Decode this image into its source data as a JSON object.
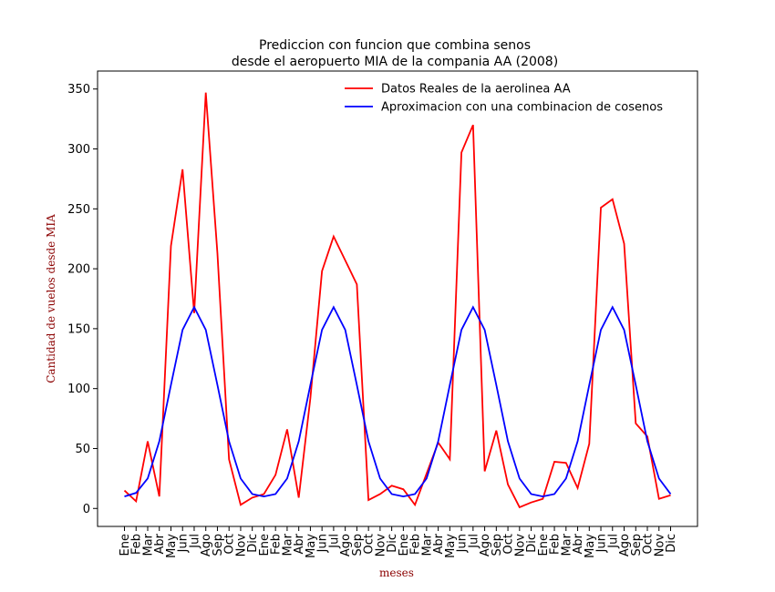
{
  "chart_data": {
    "type": "line",
    "title_line1": "Prediccion con funcion que combina senos",
    "title_line2": "desde el aeropuerto MIA de la compania AA (2008)",
    "xlabel": "meses",
    "ylabel": "Cantidad de vuelos desde MIA",
    "ylim": [
      -15,
      365
    ],
    "yticks": [
      0,
      50,
      100,
      150,
      200,
      250,
      300,
      350
    ],
    "legend_position": "top-right",
    "categories": [
      "Ene",
      "Feb",
      "Mar",
      "Abr",
      "May",
      "Jun",
      "Jul",
      "Ago",
      "Sep",
      "Oct",
      "Nov",
      "Dic",
      "Ene",
      "Feb",
      "Mar",
      "Abr",
      "May",
      "Jun",
      "Jul",
      "Ago",
      "Sep",
      "Oct",
      "Nov",
      "Dic",
      "Ene",
      "Feb",
      "Mar",
      "Abr",
      "May",
      "Jun",
      "Jul",
      "Ago",
      "Sep",
      "Oct",
      "Nov",
      "Dic",
      "Ene",
      "Feb",
      "Mar",
      "Abr",
      "May",
      "Jun",
      "Jul",
      "Ago",
      "Sep",
      "Oct",
      "Nov",
      "Dic"
    ],
    "series": [
      {
        "name": "Datos Reales de la aerolinea AA",
        "color": "#ff0000",
        "values": [
          15,
          6,
          56,
          10,
          219,
          283,
          163,
          347,
          213,
          41,
          3,
          9,
          12,
          28,
          66,
          9,
          92,
          198,
          227,
          207,
          187,
          7,
          12,
          19,
          16,
          3,
          29,
          55,
          41,
          297,
          320,
          31,
          65,
          20,
          1,
          5,
          8,
          39,
          38,
          17,
          54,
          251,
          258,
          221,
          71,
          60,
          8,
          11
        ]
      },
      {
        "name": "Aproximacion con una combinacion de cosenos",
        "color": "#0000ff",
        "values": [
          10,
          13,
          25,
          56,
          103,
          149,
          168,
          149,
          103,
          56,
          25,
          12,
          10,
          12,
          25,
          56,
          103,
          149,
          168,
          149,
          103,
          56,
          25,
          12,
          10,
          12,
          25,
          56,
          103,
          149,
          168,
          149,
          103,
          56,
          25,
          12,
          10,
          12,
          25,
          56,
          103,
          149,
          168,
          149,
          103,
          56,
          25,
          12
        ]
      }
    ]
  }
}
